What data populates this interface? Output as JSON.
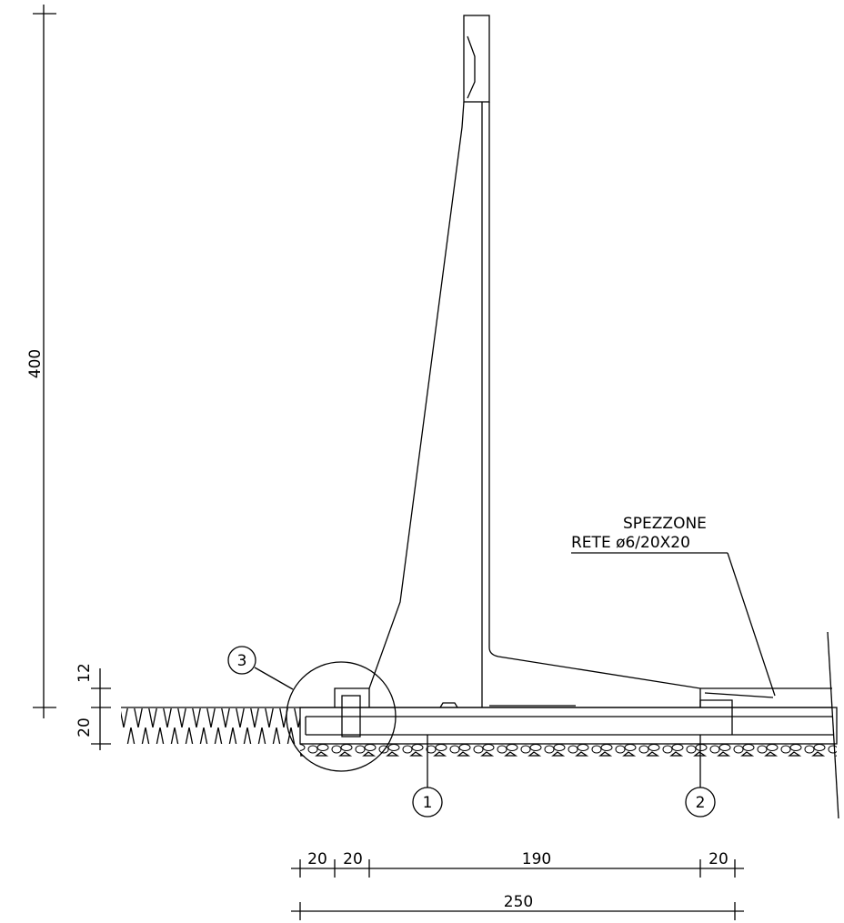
{
  "dimensions": {
    "vertical": [
      {
        "label": "400"
      },
      {
        "label": "12"
      },
      {
        "label": "20"
      }
    ],
    "horizontal": [
      {
        "label": "20"
      },
      {
        "label": "20"
      },
      {
        "label": "190"
      },
      {
        "label": "20"
      }
    ],
    "total": "250"
  },
  "callouts": [
    {
      "label": "3"
    },
    {
      "label": "1"
    },
    {
      "label": "2"
    }
  ],
  "note": {
    "line1": "SPEZZONE",
    "line2": "RETE ø6/20X20"
  }
}
